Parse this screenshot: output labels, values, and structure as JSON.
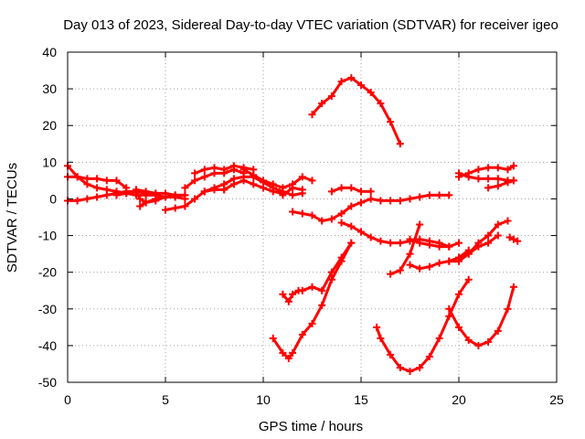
{
  "chart_data": {
    "type": "scatter",
    "title": "Day 013 of 2023, Sidereal Day-to-day VTEC variation (SDTVAR) for receiver igeo",
    "xlabel": "GPS time / hours",
    "ylabel": "SDTVAR / TECUs",
    "xlim": [
      0,
      25
    ],
    "ylim": [
      -50,
      40
    ],
    "x_ticks": [
      "0",
      "5",
      "10",
      "15",
      "20",
      "25"
    ],
    "y_ticks": [
      "40",
      "30",
      "20",
      "10",
      "0",
      "-10",
      "-20",
      "-30",
      "-40",
      "-50"
    ],
    "grid": true,
    "marker_color": "#ff0000",
    "series": [
      {
        "x": [
          0.0,
          0.5,
          1.0,
          1.5,
          2.0,
          2.5,
          3.0
        ],
        "y": [
          6,
          6,
          5.5,
          5.5,
          5,
          5,
          3
        ]
      },
      {
        "x": [
          0.0,
          0.5,
          1.0,
          1.5,
          2.0,
          2.5,
          3.0,
          3.5,
          4.0,
          4.5,
          5.0,
          5.5,
          6.0
        ],
        "y": [
          9,
          6,
          4,
          3,
          2.5,
          2,
          1.5,
          1,
          1,
          1,
          0.5,
          0.5,
          0
        ]
      },
      {
        "x": [
          0.0,
          0.5,
          1.0,
          1.5,
          2.0,
          2.5,
          3.0,
          3.5,
          4.0,
          4.5,
          5.0
        ],
        "y": [
          -0.5,
          -0.5,
          0,
          0.5,
          1,
          1.5,
          2,
          2,
          1.5,
          1,
          0.5
        ]
      },
      {
        "x": [
          2.5,
          3.0,
          3.5,
          3.7,
          4.0,
          4.5,
          5.0,
          5.5,
          6.0
        ],
        "y": [
          1,
          1.5,
          2,
          0,
          -1,
          -0.5,
          0.5,
          1,
          1
        ]
      },
      {
        "x": [
          3.5,
          4.0,
          4.5,
          5.0,
          5.5,
          6.0
        ],
        "y": [
          2.5,
          2,
          1.5,
          1.5,
          1,
          1
        ]
      },
      {
        "x": [
          3.7,
          4.0,
          4.5,
          5.0,
          5.5
        ],
        "y": [
          -2,
          -1,
          0,
          0.5,
          0.5
        ]
      },
      {
        "x": [
          5.0,
          5.5,
          6.0,
          6.5,
          7.0,
          7.5,
          8.0
        ],
        "y": [
          -3,
          -2.5,
          -2,
          0,
          2,
          2.5,
          2.5
        ]
      },
      {
        "x": [
          6.0,
          6.5,
          7.0,
          7.5,
          8.0,
          8.5,
          9.0
        ],
        "y": [
          3,
          5,
          6,
          7,
          7,
          8,
          7
        ]
      },
      {
        "x": [
          6.5,
          7.0,
          7.5,
          8.0,
          8.5,
          9.0,
          9.5
        ],
        "y": [
          7,
          8,
          8.5,
          8,
          9,
          8.5,
          8
        ]
      },
      {
        "x": [
          7.0,
          7.5,
          8.0,
          8.5,
          9.0,
          9.5,
          10.0,
          10.5,
          11.0,
          11.5,
          12.0
        ],
        "y": [
          2,
          3,
          4,
          5.5,
          6,
          6,
          4.5,
          3,
          2,
          1,
          1.5
        ]
      },
      {
        "x": [
          8.0,
          8.5,
          9.0,
          9.5,
          10.0,
          10.5,
          11.0
        ],
        "y": [
          2.5,
          4,
          5,
          4,
          3,
          2,
          1.5
        ]
      },
      {
        "x": [
          9.0,
          9.5,
          10.0,
          10.5,
          11.0,
          11.5,
          12.0,
          12.5
        ],
        "y": [
          8,
          6.5,
          5,
          4,
          3,
          4,
          6,
          5
        ]
      },
      {
        "x": [
          11.0,
          11.5,
          12.0
        ],
        "y": [
          1,
          3,
          2.5
        ]
      },
      {
        "x": [
          11.5,
          12.0,
          12.5,
          13.0,
          13.5,
          14.0,
          14.5,
          15.0,
          15.5,
          16.0,
          16.5,
          17.0,
          17.5,
          18.0,
          18.5,
          19.0,
          19.5
        ],
        "y": [
          -3.5,
          -4,
          -4.5,
          -6,
          -5.5,
          -4,
          -2,
          -1,
          0,
          -0.5,
          -0.5,
          -0.5,
          0,
          0.5,
          1,
          1,
          1
        ]
      },
      {
        "x": [
          13.5,
          14.0,
          14.5,
          15.0,
          15.5
        ],
        "y": [
          2,
          3,
          3,
          2,
          2
        ]
      },
      {
        "x": [
          12.5,
          13.0,
          13.5,
          14.0,
          14.5,
          15.0,
          15.5,
          16.0,
          16.5,
          17.0
        ],
        "y": [
          23,
          26,
          28,
          32,
          33,
          31,
          29,
          26,
          21,
          15
        ]
      },
      {
        "x": [
          14.0,
          14.5,
          15.0,
          15.5,
          16.0,
          16.5,
          17.0,
          17.5,
          18.0,
          18.5,
          19.0,
          19.5,
          20.0
        ],
        "y": [
          -6.5,
          -7.5,
          -9,
          -10.5,
          -11.5,
          -12,
          -12,
          -11.5,
          -11,
          -11.5,
          -12,
          -13,
          -12
        ]
      },
      {
        "x": [
          16.5,
          17.0,
          17.5,
          18.0
        ],
        "y": [
          -20.5,
          -19.5,
          -15,
          -7
        ]
      },
      {
        "x": [
          17.5,
          18.0,
          18.5,
          19.0,
          19.5
        ],
        "y": [
          -11,
          -12,
          -12.5,
          -13,
          -13
        ]
      },
      {
        "x": [
          17.5,
          18.0,
          18.5,
          19.0,
          19.5,
          20.0,
          20.5
        ],
        "y": [
          -18,
          -19,
          -18.5,
          -17.5,
          -17,
          -16,
          -14
        ]
      },
      {
        "x": [
          19.5,
          20.0,
          20.5,
          21.0,
          21.5,
          22.0,
          22.5
        ],
        "y": [
          -17,
          -17,
          -15,
          -12,
          -10,
          -7,
          -6
        ]
      },
      {
        "x": [
          20.0,
          20.5,
          21.0,
          21.5,
          22.0
        ],
        "y": [
          -16,
          -15,
          -13,
          -12,
          -10
        ]
      },
      {
        "x": [
          20.0,
          20.5,
          21.0,
          21.5,
          22.0,
          22.5,
          22.8
        ],
        "y": [
          6,
          7,
          8,
          8.5,
          8.5,
          8,
          9
        ]
      },
      {
        "x": [
          20.0,
          20.5,
          21.0,
          21.5,
          22.0,
          22.5,
          22.8
        ],
        "y": [
          7,
          6,
          5.5,
          5.5,
          5.5,
          5,
          5
        ]
      },
      {
        "x": [
          21.5,
          22.0,
          22.5,
          22.8
        ],
        "y": [
          3,
          3.5,
          4.5,
          5
        ]
      },
      {
        "x": [
          22.6,
          22.8,
          23.0
        ],
        "y": [
          -10.5,
          -11,
          -11.5
        ]
      },
      {
        "x": [
          11.0,
          11.3,
          11.5,
          11.8,
          12.0,
          12.5,
          13.0,
          13.5,
          14.0,
          14.5
        ],
        "y": [
          -26,
          -28,
          -26,
          -25,
          -25,
          -24,
          -25,
          -20,
          -16,
          -12
        ]
      },
      {
        "x": [
          10.5,
          11.0,
          11.3,
          11.5,
          12.0,
          12.5,
          13.0,
          13.5,
          14.0,
          14.5
        ],
        "y": [
          -38,
          -42,
          -43.5,
          -42,
          -37,
          -34,
          -29,
          -22,
          -17,
          -12
        ]
      },
      {
        "x": [
          15.8,
          16.0,
          16.5,
          17.0,
          17.5,
          18.0,
          18.5,
          19.0,
          19.5,
          20.0,
          20.5
        ],
        "y": [
          -35,
          -38,
          -42.5,
          -46,
          -47,
          -46,
          -43,
          -38,
          -32,
          -26,
          -22
        ]
      },
      {
        "x": [
          19.5,
          20.0,
          20.5,
          21.0,
          21.5,
          22.0,
          22.5,
          22.8
        ],
        "y": [
          -30,
          -35,
          -38.5,
          -40,
          -39,
          -36,
          -30,
          -24
        ]
      }
    ]
  }
}
